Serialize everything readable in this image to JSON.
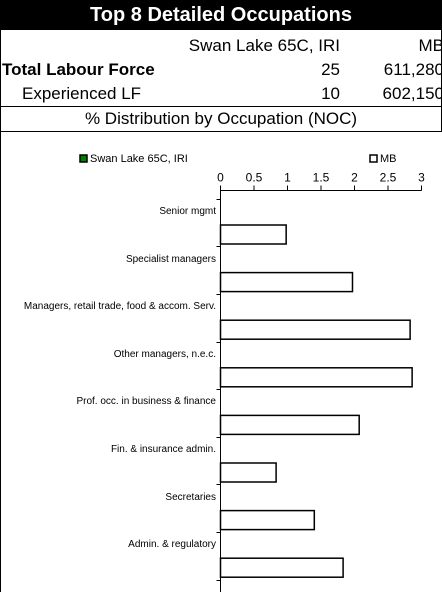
{
  "header": {
    "title": "Top 8 Detailed Occupations",
    "columns": [
      "Swan Lake 65C, IRI",
      "MB"
    ],
    "rows": [
      {
        "label": "Total Labour Force",
        "values": [
          "25",
          "611,280"
        ]
      },
      {
        "label": "Experienced LF",
        "values": [
          "10",
          "602,150"
        ]
      }
    ],
    "subtitle": "% Distribution by Occupation (NOC)"
  },
  "chart_data": {
    "type": "bar",
    "orientation": "horizontal",
    "categories": [
      "Senior mgmt",
      "Specialist managers",
      "Managers, retail trade, food & accom. Serv.",
      "Other managers, n.e.c.",
      "Prof. occ. in business & finance",
      "Fin. & insurance admin.",
      "Secretaries",
      "Admin. & regulatory"
    ],
    "series": [
      {
        "name": "Swan Lake 65C, IRI",
        "color": "#008000",
        "values": [
          0,
          0,
          0,
          0,
          0,
          0,
          0,
          0
        ]
      },
      {
        "name": "MB",
        "color": "#ffffff",
        "values": [
          0.98,
          1.97,
          2.83,
          2.86,
          2.07,
          0.83,
          1.4,
          1.83
        ]
      }
    ],
    "xlim": [
      0,
      3
    ],
    "xticks": [
      0,
      0.5,
      1,
      1.5,
      2,
      2.5,
      3
    ],
    "legend": "top",
    "grid": false
  }
}
